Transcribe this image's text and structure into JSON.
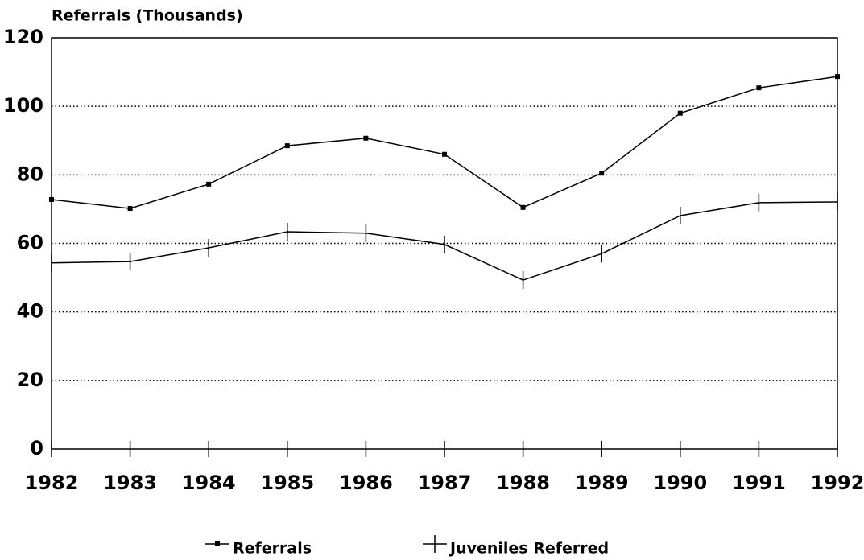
{
  "chart_data": {
    "type": "line",
    "y_label": "Referrals (Thousands)",
    "x": [
      1982,
      1983,
      1984,
      1985,
      1986,
      1987,
      1988,
      1989,
      1990,
      1991,
      1992
    ],
    "series": [
      {
        "name": "Referrals",
        "color": "#000000",
        "marker": "square",
        "values": [
          72.8,
          70.2,
          77.3,
          88.5,
          90.7,
          86,
          70.5,
          80.5,
          98,
          105.4,
          108.7
        ]
      },
      {
        "name": "Juveniles Referred",
        "color": "#000000",
        "marker": "plus",
        "values": [
          54.3,
          54.7,
          58.7,
          63.4,
          63,
          59.7,
          49.3,
          57,
          68.1,
          71.9,
          72.1
        ]
      }
    ],
    "xlim": [
      1982,
      1992
    ],
    "xticks": [
      1982,
      1983,
      1984,
      1985,
      1986,
      1987,
      1988,
      1989,
      1990,
      1991,
      1992
    ],
    "ylim": [
      0,
      120
    ],
    "yticks": [
      0,
      20,
      40,
      60,
      80,
      100,
      120
    ],
    "grid": true,
    "legend": "bottom"
  }
}
